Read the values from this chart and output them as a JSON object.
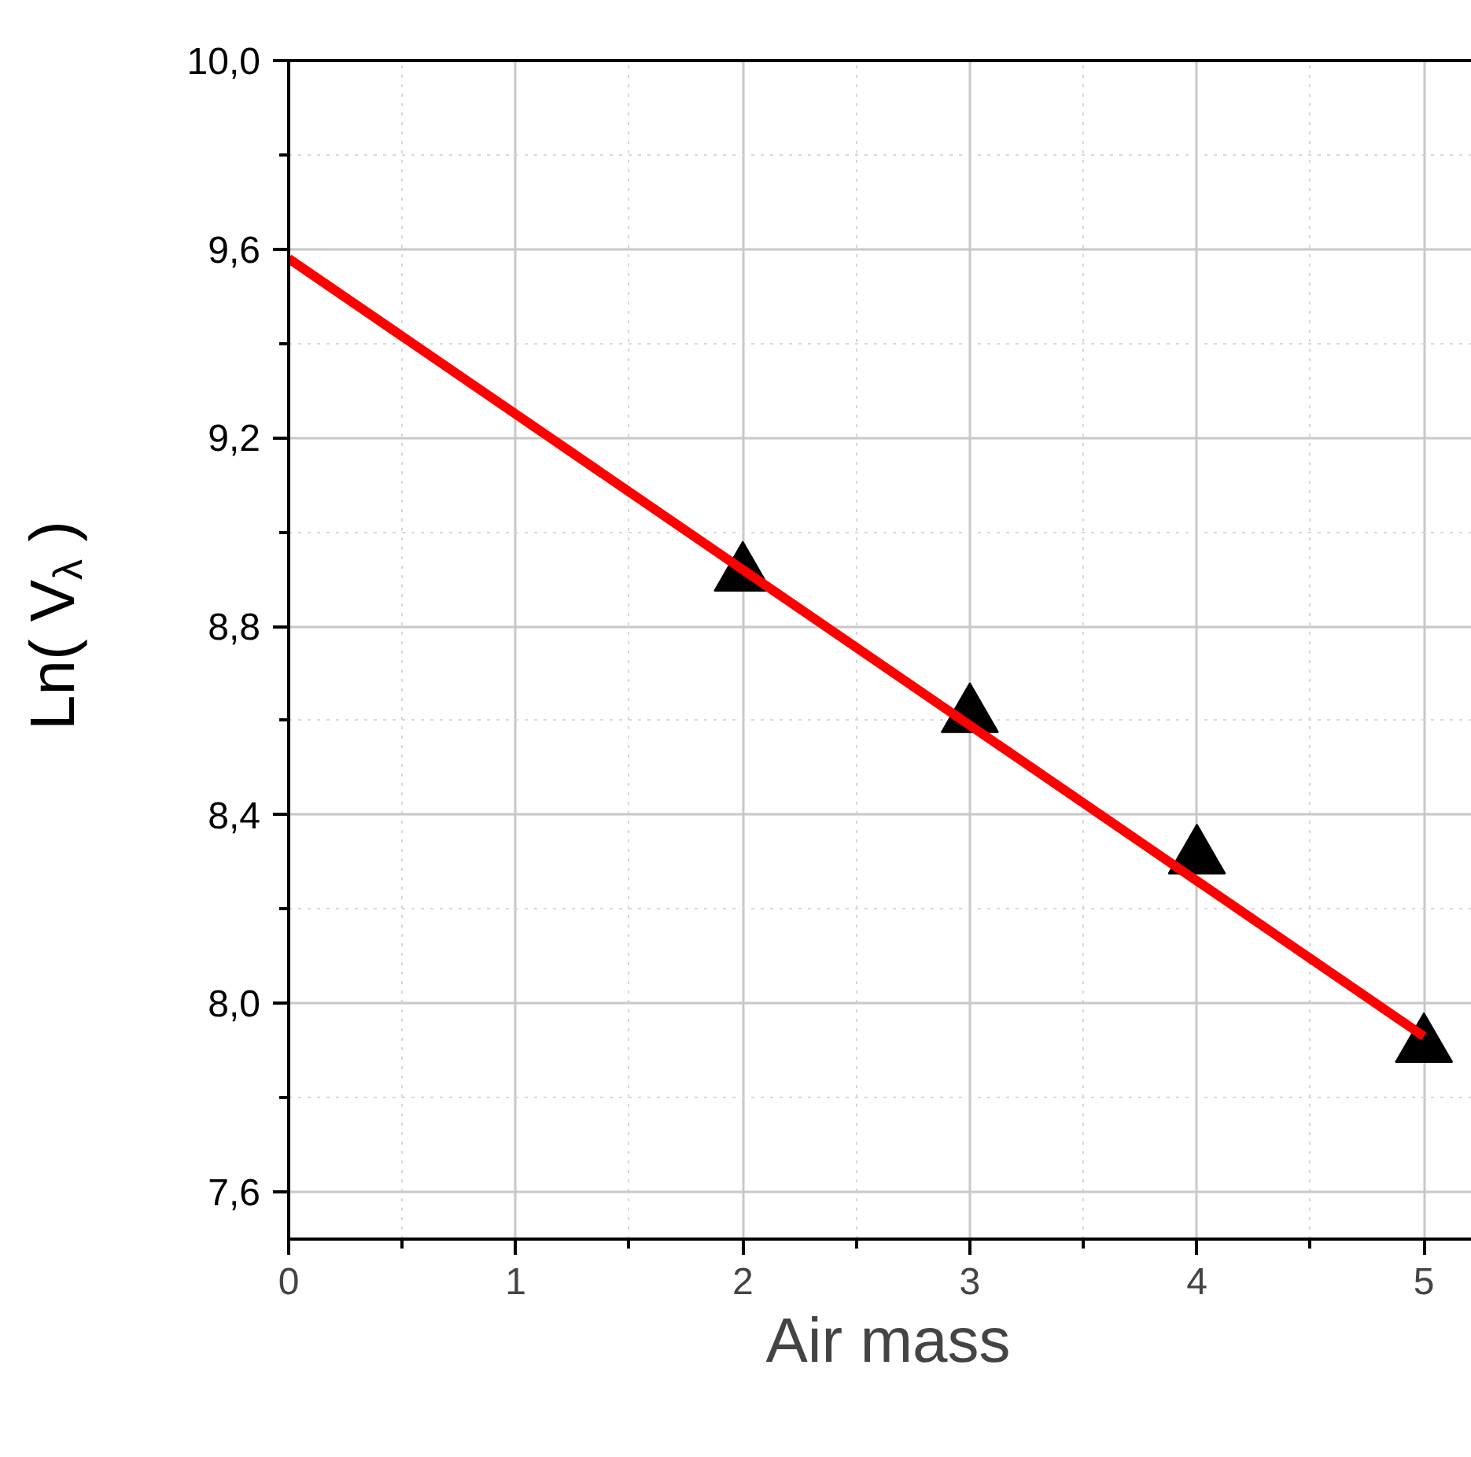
{
  "chart_data": {
    "type": "scatter",
    "xlabel": "Air mass",
    "ylabel": "Ln( V$_{λ}$ )",
    "x": [
      2,
      3,
      4,
      5
    ],
    "series": [
      {
        "color": "#000000",
        "marker": "triangle",
        "values": [
          8.91,
          8.61,
          8.31,
          7.91
        ]
      },
      {
        "type": "line",
        "color": "#ff0000",
        "marker": "none",
        "line_style": "solid",
        "x": [
          0,
          5
        ],
        "values": [
          9.58,
          7.93
        ]
      }
    ],
    "xlim": [
      0,
      5.28
    ],
    "ylim": [
      7.5,
      10.0
    ],
    "xticks": [
      0,
      1,
      2,
      3,
      4,
      5
    ],
    "yticks": [
      {
        "value": 7.6,
        "label": "7,6"
      },
      {
        "value": 8.0,
        "label": "8,0"
      },
      {
        "value": 8.4,
        "label": "8,4"
      },
      {
        "value": 8.8,
        "label": "8,8"
      },
      {
        "value": 9.2,
        "label": "9,2"
      },
      {
        "value": 9.6,
        "label": "9,6"
      },
      {
        "value": 10.0,
        "label": "10,0"
      }
    ],
    "grid": true
  }
}
